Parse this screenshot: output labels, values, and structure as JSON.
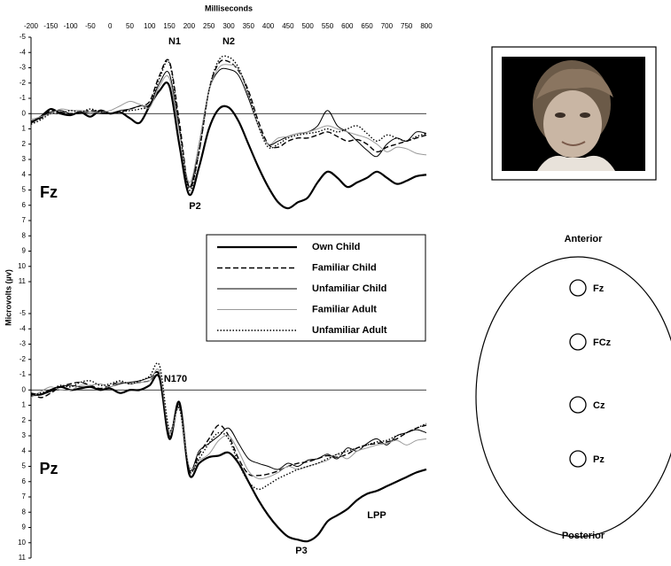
{
  "chart_data": [
    {
      "type": "line",
      "x_label": "Milliseconds",
      "y_label": "Microvolts (µv)",
      "y_inverted": true,
      "xlim": [
        -200,
        800
      ],
      "xticks": [
        -200,
        -150,
        -100,
        -50,
        0,
        50,
        100,
        150,
        200,
        250,
        300,
        350,
        400,
        450,
        500,
        550,
        600,
        650,
        700,
        750,
        800
      ],
      "ylim": [
        -5,
        11
      ],
      "yticks": [
        -5,
        -4,
        -3,
        -2,
        -1,
        0,
        1,
        2,
        3,
        4,
        5,
        6,
        7,
        8,
        9,
        10,
        11
      ],
      "legend": true,
      "annotations": [
        "Fz",
        "N1",
        "N2",
        "P2"
      ],
      "x": [
        -200,
        -175,
        -150,
        -125,
        -100,
        -75,
        -50,
        -25,
        0,
        25,
        50,
        75,
        100,
        125,
        150,
        175,
        200,
        225,
        250,
        275,
        300,
        325,
        350,
        375,
        400,
        425,
        450,
        475,
        500,
        525,
        550,
        575,
        600,
        625,
        650,
        675,
        700,
        725,
        750,
        775,
        800
      ],
      "series": [
        {
          "name": "Own Child",
          "color": "#000000",
          "width": 2.2,
          "dash": "solid",
          "values": [
            0.6,
            0.2,
            -0.3,
            0,
            0.1,
            -0.1,
            0.2,
            -0.2,
            0,
            -0.1,
            0.3,
            0.6,
            -0.5,
            -1.5,
            -1.8,
            2,
            5.3,
            3.5,
            1,
            -0.3,
            -0.4,
            0.5,
            2,
            3.5,
            4.8,
            5.8,
            6.2,
            5.8,
            5.5,
            4.5,
            3.8,
            4.2,
            4.8,
            4.5,
            4.2,
            3.8,
            4.2,
            4.6,
            4.4,
            4.1,
            4.0
          ]
        },
        {
          "name": "Familiar Child",
          "color": "#000000",
          "width": 1.4,
          "dash": "dashed",
          "values": [
            0.5,
            0.3,
            -0.2,
            -0.1,
            0,
            -0.1,
            -0.2,
            -0.1,
            0,
            -0.1,
            -0.3,
            -0.5,
            -0.8,
            -2.5,
            -3.4,
            0.5,
            4.8,
            2.5,
            -1.5,
            -3.3,
            -3.4,
            -2.8,
            -1.5,
            0.5,
            2.0,
            2.2,
            1.8,
            1.6,
            1.6,
            1.4,
            1.2,
            1.5,
            1.8,
            1.7,
            2.0,
            2.5,
            2.2,
            2.0,
            1.8,
            1.6,
            1.4
          ]
        },
        {
          "name": "Unfamiliar Child",
          "color": "#000000",
          "width": 1,
          "dash": "solid",
          "values": [
            0.6,
            0.2,
            -0.1,
            -0.2,
            0,
            0,
            -0.1,
            0,
            0,
            -0.2,
            -0.3,
            -0.5,
            -0.6,
            -2.0,
            -2.6,
            1,
            4.8,
            2,
            -1.5,
            -2.8,
            -2.9,
            -2.5,
            -1,
            0.8,
            2.0,
            1.8,
            1.5,
            1.3,
            1.2,
            0.8,
            -0.2,
            0.8,
            1.2,
            1.8,
            2.4,
            2.8,
            2.0,
            1.6,
            1.8,
            1.2,
            1.3
          ]
        },
        {
          "name": "Familiar Adult",
          "color": "#999999",
          "width": 1,
          "dash": "solid",
          "values": [
            0.4,
            0.2,
            0,
            -0.3,
            -0.2,
            -0.2,
            -0.1,
            -0.1,
            -0.2,
            -0.5,
            -0.8,
            -0.6,
            -0.4,
            -1.8,
            -2.3,
            1.2,
            4.5,
            2,
            -1.5,
            -3.0,
            -3.2,
            -2.9,
            -1.2,
            0.8,
            2.0,
            1.6,
            1.5,
            1.3,
            1.2,
            1.0,
            0.8,
            1.0,
            1.2,
            1.4,
            1.6,
            2.0,
            2.5,
            2.2,
            2.3,
            2.6,
            2.7
          ]
        },
        {
          "name": "Unfamiliar Adult",
          "color": "#000000",
          "width": 1.4,
          "dash": "dotted",
          "values": [
            0.7,
            0.4,
            0,
            0,
            -0.2,
            -0.1,
            -0.3,
            -0.1,
            0,
            -0.1,
            -0.2,
            -0.3,
            -0.6,
            -2.3,
            -3.3,
            0.8,
            5.0,
            2.5,
            -1.5,
            -3.5,
            -3.7,
            -3.0,
            -1.3,
            0.8,
            2.2,
            2.0,
            1.6,
            1.4,
            1.3,
            1.2,
            1.0,
            1.2,
            1.0,
            0.8,
            1.3,
            1.8,
            1.4,
            1.6,
            1.8,
            1.5,
            1.3
          ]
        }
      ]
    },
    {
      "type": "line",
      "y_inverted": true,
      "xlim": [
        -200,
        800
      ],
      "ylim": [
        -5,
        11
      ],
      "yticks": [
        -5,
        -4,
        -3,
        -2,
        -1,
        0,
        1,
        2,
        3,
        4,
        5,
        6,
        7,
        8,
        9,
        10,
        11
      ],
      "legend": false,
      "annotations": [
        "Pz",
        "N170",
        "P3",
        "LPP"
      ],
      "x": [
        -200,
        -175,
        -150,
        -125,
        -100,
        -75,
        -50,
        -25,
        0,
        25,
        50,
        75,
        100,
        125,
        150,
        175,
        200,
        225,
        250,
        275,
        300,
        325,
        350,
        375,
        400,
        425,
        450,
        475,
        500,
        525,
        550,
        575,
        600,
        625,
        650,
        675,
        700,
        725,
        750,
        775,
        800
      ],
      "series": [
        {
          "name": "Own Child",
          "color": "#000000",
          "width": 2.2,
          "dash": "solid",
          "values": [
            0.3,
            0.3,
            0,
            -0.2,
            0,
            -0.1,
            -0.2,
            0,
            -0.1,
            0.2,
            0,
            0,
            -0.3,
            -0.8,
            3.2,
            0.8,
            5.5,
            4.8,
            4.4,
            4.3,
            4.1,
            4.8,
            6.0,
            7.2,
            8.2,
            9.0,
            9.6,
            9.8,
            9.9,
            9.5,
            8.6,
            8.2,
            7.8,
            7.2,
            6.8,
            6.6,
            6.3,
            6.0,
            5.7,
            5.4,
            5.2
          ]
        },
        {
          "name": "Familiar Child",
          "color": "#000000",
          "width": 1.4,
          "dash": "dashed",
          "values": [
            0.2,
            0.5,
            0.2,
            -0.2,
            -0.4,
            -0.5,
            -0.3,
            -0.1,
            -0.3,
            -0.5,
            -0.4,
            -0.5,
            -0.6,
            -1.0,
            3.0,
            1.0,
            5.3,
            4.2,
            3.2,
            2.3,
            3.0,
            4.5,
            5.5,
            5.6,
            5.5,
            5.3,
            5.0,
            4.8,
            4.7,
            4.5,
            4.3,
            4.4,
            4.2,
            3.8,
            3.6,
            3.5,
            3.4,
            3.2,
            2.8,
            2.5,
            2.3
          ]
        },
        {
          "name": "Unfamiliar Child",
          "color": "#000000",
          "width": 1,
          "dash": "solid",
          "values": [
            0.2,
            0.3,
            0.1,
            -0.2,
            -0.3,
            -0.2,
            -0.2,
            0,
            -0.2,
            -0.4,
            -0.5,
            -0.6,
            -0.8,
            -0.9,
            2.8,
            1.0,
            5.2,
            4.0,
            3.5,
            3.0,
            2.5,
            3.5,
            4.5,
            4.8,
            5.0,
            5.2,
            4.8,
            5.0,
            4.6,
            4.5,
            4.2,
            4.5,
            3.8,
            4.0,
            3.5,
            3.2,
            3.6,
            3.0,
            2.8,
            2.6,
            2.8
          ]
        },
        {
          "name": "Familiar Adult",
          "color": "#999999",
          "width": 1,
          "dash": "solid",
          "values": [
            0.5,
            0.1,
            -0.2,
            0,
            0,
            -0.3,
            -0.3,
            -0.4,
            -0.2,
            -0.5,
            -0.4,
            -0.5,
            -0.6,
            -1.2,
            2.8,
            1.2,
            5.0,
            4.6,
            4.2,
            3.3,
            3.0,
            4.0,
            5.3,
            5.8,
            5.7,
            5.4,
            5.0,
            5.2,
            5.0,
            4.8,
            4.6,
            4.2,
            4.5,
            4.0,
            3.8,
            3.6,
            3.5,
            3.3,
            3.6,
            3.3,
            3.2
          ]
        },
        {
          "name": "Unfamiliar Adult",
          "color": "#000000",
          "width": 1.4,
          "dash": "dotted",
          "values": [
            0.4,
            0.2,
            0,
            -0.3,
            -0.2,
            -0.5,
            -0.6,
            -0.3,
            -0.4,
            -0.6,
            -0.4,
            -0.6,
            -0.9,
            -1.6,
            2.6,
            1.2,
            5.2,
            4.5,
            3.5,
            2.8,
            3.2,
            4.8,
            6.0,
            6.5,
            6.2,
            5.8,
            5.5,
            5.2,
            5.0,
            4.8,
            4.5,
            4.2,
            4.0,
            3.8,
            3.6,
            3.4,
            3.3,
            3.0,
            2.8,
            2.5,
            2.2
          ]
        }
      ]
    }
  ],
  "scalp_map": {
    "top_label": "Anterior",
    "bottom_label": "Posterior",
    "electrodes": [
      "Fz",
      "FCz",
      "Cz",
      "Pz"
    ]
  }
}
